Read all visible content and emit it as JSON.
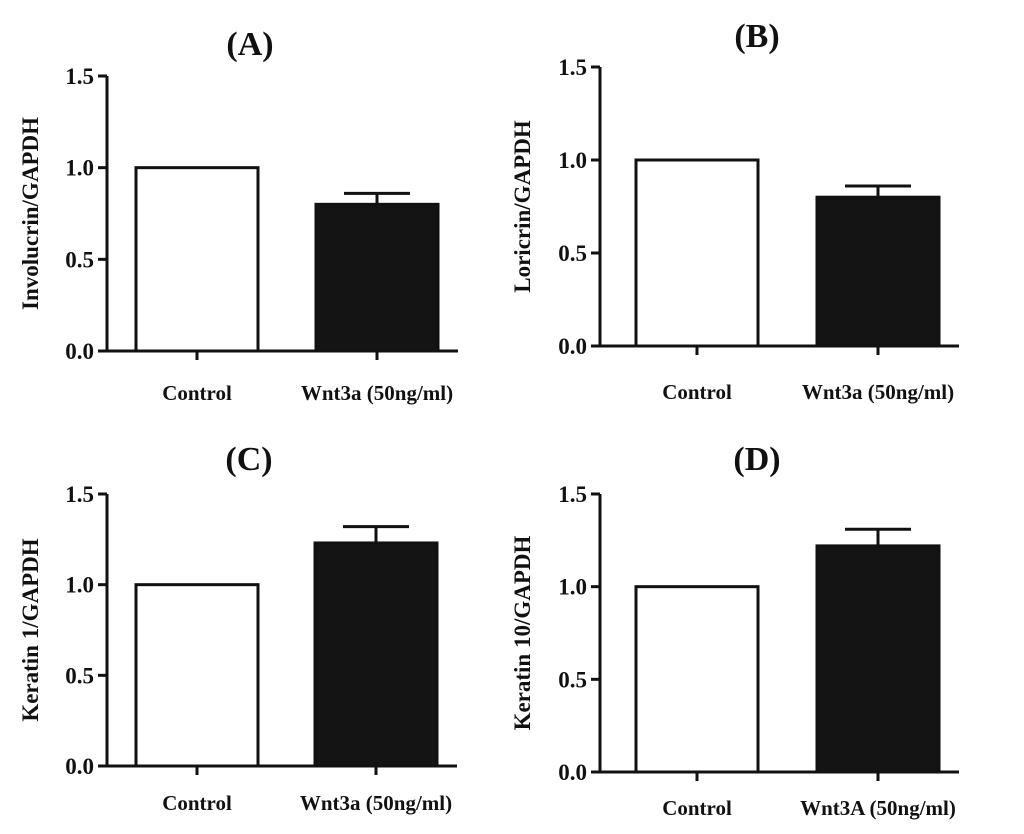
{
  "chart_data": [
    {
      "type": "bar",
      "title": "(A)",
      "ylabel": "Involucrin/GAPDH",
      "xlabel": "",
      "categories": [
        "Control",
        "Wnt3a (50ng/ml)"
      ],
      "values": [
        1.0,
        0.8
      ],
      "errors": [
        0.0,
        0.06
      ],
      "bar_fills": [
        "#ffffff",
        "#141414"
      ],
      "ylim": [
        0,
        1.5
      ],
      "yticks": [
        0.0,
        0.5,
        1.0,
        1.5
      ],
      "ytick_labels": [
        "0.0",
        "0.5",
        "1.0",
        "1.5"
      ],
      "grid": false
    },
    {
      "type": "bar",
      "title": "(B)",
      "ylabel": "Loricrin/GAPDH",
      "xlabel": "",
      "categories": [
        "Control",
        "Wnt3a (50ng/ml)"
      ],
      "values": [
        1.0,
        0.8
      ],
      "errors": [
        0.0,
        0.06
      ],
      "bar_fills": [
        "#ffffff",
        "#141414"
      ],
      "ylim": [
        0,
        1.5
      ],
      "yticks": [
        0.0,
        0.5,
        1.0,
        1.5
      ],
      "ytick_labels": [
        "0.0",
        "0.5",
        "1.0",
        "1.5"
      ],
      "grid": false
    },
    {
      "type": "bar",
      "title": "(C)",
      "ylabel": "Keratin 1/GAPDH",
      "xlabel": "",
      "categories": [
        "Control",
        "Wnt3a (50ng/ml)"
      ],
      "values": [
        1.0,
        1.23
      ],
      "errors": [
        0.0,
        0.09
      ],
      "bar_fills": [
        "#ffffff",
        "#141414"
      ],
      "ylim": [
        0,
        1.5
      ],
      "yticks": [
        0.0,
        0.5,
        1.0,
        1.5
      ],
      "ytick_labels": [
        "0.0",
        "0.5",
        "1.0",
        "1.5"
      ],
      "grid": false
    },
    {
      "type": "bar",
      "title": "(D)",
      "ylabel": "Keratin 10/GAPDH",
      "xlabel": "",
      "categories": [
        "Control",
        "Wnt3A (50ng/ml)"
      ],
      "values": [
        1.0,
        1.22
      ],
      "errors": [
        0.0,
        0.09
      ],
      "bar_fills": [
        "#ffffff",
        "#141414"
      ],
      "ylim": [
        0,
        1.5
      ],
      "yticks": [
        0.0,
        0.5,
        1.0,
        1.5
      ],
      "ytick_labels": [
        "0.0",
        "0.5",
        "1.0",
        "1.5"
      ],
      "grid": false
    }
  ]
}
